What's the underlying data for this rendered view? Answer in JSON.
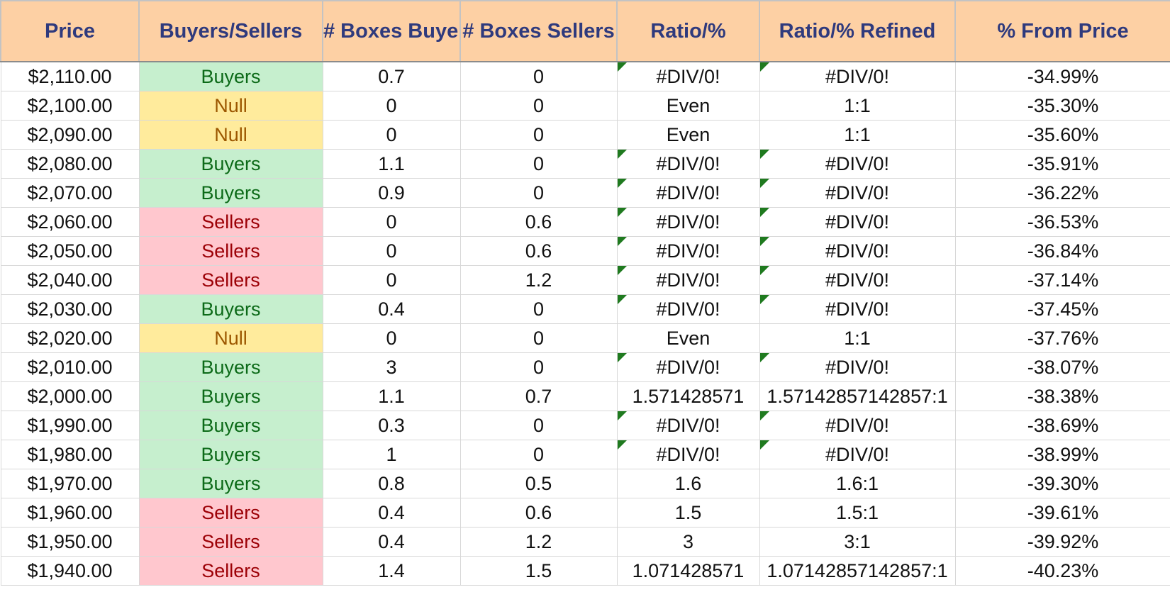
{
  "sheet": {
    "headers": [
      "Price",
      "Buyers/Sellers",
      "# Boxes Buyers",
      "# Boxes Sellers",
      "Ratio/%",
      "Ratio/% Refined",
      "% From Price"
    ],
    "rows": [
      {
        "price": "$2,110.00",
        "side": "Buyers",
        "buyers": "0.7",
        "sellers": "0",
        "ratio": "#DIV/0!",
        "refined": "#DIV/0!",
        "from_price": "-34.99%",
        "error_flag": true
      },
      {
        "price": "$2,100.00",
        "side": "Null",
        "buyers": "0",
        "sellers": "0",
        "ratio": "Even",
        "refined": "1:1",
        "from_price": "-35.30%",
        "error_flag": false
      },
      {
        "price": "$2,090.00",
        "side": "Null",
        "buyers": "0",
        "sellers": "0",
        "ratio": "Even",
        "refined": "1:1",
        "from_price": "-35.60%",
        "error_flag": false
      },
      {
        "price": "$2,080.00",
        "side": "Buyers",
        "buyers": "1.1",
        "sellers": "0",
        "ratio": "#DIV/0!",
        "refined": "#DIV/0!",
        "from_price": "-35.91%",
        "error_flag": true
      },
      {
        "price": "$2,070.00",
        "side": "Buyers",
        "buyers": "0.9",
        "sellers": "0",
        "ratio": "#DIV/0!",
        "refined": "#DIV/0!",
        "from_price": "-36.22%",
        "error_flag": true
      },
      {
        "price": "$2,060.00",
        "side": "Sellers",
        "buyers": "0",
        "sellers": "0.6",
        "ratio": "#DIV/0!",
        "refined": "#DIV/0!",
        "from_price": "-36.53%",
        "error_flag": true
      },
      {
        "price": "$2,050.00",
        "side": "Sellers",
        "buyers": "0",
        "sellers": "0.6",
        "ratio": "#DIV/0!",
        "refined": "#DIV/0!",
        "from_price": "-36.84%",
        "error_flag": true
      },
      {
        "price": "$2,040.00",
        "side": "Sellers",
        "buyers": "0",
        "sellers": "1.2",
        "ratio": "#DIV/0!",
        "refined": "#DIV/0!",
        "from_price": "-37.14%",
        "error_flag": true
      },
      {
        "price": "$2,030.00",
        "side": "Buyers",
        "buyers": "0.4",
        "sellers": "0",
        "ratio": "#DIV/0!",
        "refined": "#DIV/0!",
        "from_price": "-37.45%",
        "error_flag": true
      },
      {
        "price": "$2,020.00",
        "side": "Null",
        "buyers": "0",
        "sellers": "0",
        "ratio": "Even",
        "refined": "1:1",
        "from_price": "-37.76%",
        "error_flag": false
      },
      {
        "price": "$2,010.00",
        "side": "Buyers",
        "buyers": "3",
        "sellers": "0",
        "ratio": "#DIV/0!",
        "refined": "#DIV/0!",
        "from_price": "-38.07%",
        "error_flag": true
      },
      {
        "price": "$2,000.00",
        "side": "Buyers",
        "buyers": "1.1",
        "sellers": "0.7",
        "ratio": "1.571428571",
        "refined": "1.57142857142857:1",
        "from_price": "-38.38%",
        "error_flag": false
      },
      {
        "price": "$1,990.00",
        "side": "Buyers",
        "buyers": "0.3",
        "sellers": "0",
        "ratio": "#DIV/0!",
        "refined": "#DIV/0!",
        "from_price": "-38.69%",
        "error_flag": true
      },
      {
        "price": "$1,980.00",
        "side": "Buyers",
        "buyers": "1",
        "sellers": "0",
        "ratio": "#DIV/0!",
        "refined": "#DIV/0!",
        "from_price": "-38.99%",
        "error_flag": true
      },
      {
        "price": "$1,970.00",
        "side": "Buyers",
        "buyers": "0.8",
        "sellers": "0.5",
        "ratio": "1.6",
        "refined": "1.6:1",
        "from_price": "-39.30%",
        "error_flag": false
      },
      {
        "price": "$1,960.00",
        "side": "Sellers",
        "buyers": "0.4",
        "sellers": "0.6",
        "ratio": "1.5",
        "refined": "1.5:1",
        "from_price": "-39.61%",
        "error_flag": false
      },
      {
        "price": "$1,950.00",
        "side": "Sellers",
        "buyers": "0.4",
        "sellers": "1.2",
        "ratio": "3",
        "refined": "3:1",
        "from_price": "-39.92%",
        "error_flag": false
      },
      {
        "price": "$1,940.00",
        "side": "Sellers",
        "buyers": "1.4",
        "sellers": "1.5",
        "ratio": "1.071428571",
        "refined": "1.07142857142857:1",
        "from_price": "-40.23%",
        "error_flag": false
      }
    ]
  },
  "colors": {
    "header_bg": "#fdd0a4",
    "header_text": "#2f3a7d",
    "buyers_bg": "#c6efce",
    "buyers_text": "#0c6a18",
    "sellers_bg": "#ffc7ce",
    "sellers_text": "#9c0006",
    "null_bg": "#ffeb9c",
    "null_text": "#9c5700",
    "error_flag": "#1f7a1f"
  }
}
